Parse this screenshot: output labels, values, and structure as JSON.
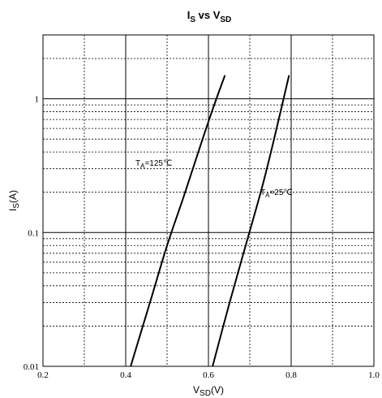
{
  "chart_data": {
    "type": "line",
    "title": {
      "main": "I",
      "sub1": "S",
      "mid": " vs V",
      "sub2": "SD"
    },
    "xlabel": {
      "main": "V",
      "sub": "SD",
      "tail": "(V)"
    },
    "ylabel": {
      "main": "I",
      "sub": "S",
      "tail": "(A)"
    },
    "xlim": [
      0.2,
      1.0
    ],
    "ylim": [
      0.01,
      3.0
    ],
    "yscale": "log",
    "grid": true,
    "x_ticks": [
      {
        "value": 0.2,
        "label": "0.2"
      },
      {
        "value": 0.4,
        "label": "0.4"
      },
      {
        "value": 0.6,
        "label": "0.6"
      },
      {
        "value": 0.8,
        "label": "0.8"
      },
      {
        "value": 1.0,
        "label": "1.0"
      }
    ],
    "y_ticks": [
      {
        "value": 0.01,
        "label": "0.01"
      },
      {
        "value": 0.1,
        "label": "0.1"
      },
      {
        "value": 1,
        "label": "1"
      }
    ],
    "series": [
      {
        "annotation": {
          "main": "T",
          "sub": "A",
          "tail": "=125℃"
        },
        "x": [
          0.412,
          0.46,
          0.5,
          0.54,
          0.58,
          0.61,
          0.64
        ],
        "y": [
          0.01,
          0.031,
          0.08,
          0.185,
          0.44,
          0.83,
          1.5
        ]
      },
      {
        "annotation": {
          "main": "T",
          "sub": "A",
          "tail": "=25℃"
        },
        "x": [
          0.61,
          0.65,
          0.69,
          0.73,
          0.76,
          0.795
        ],
        "y": [
          0.01,
          0.029,
          0.08,
          0.22,
          0.52,
          1.5
        ]
      }
    ]
  }
}
